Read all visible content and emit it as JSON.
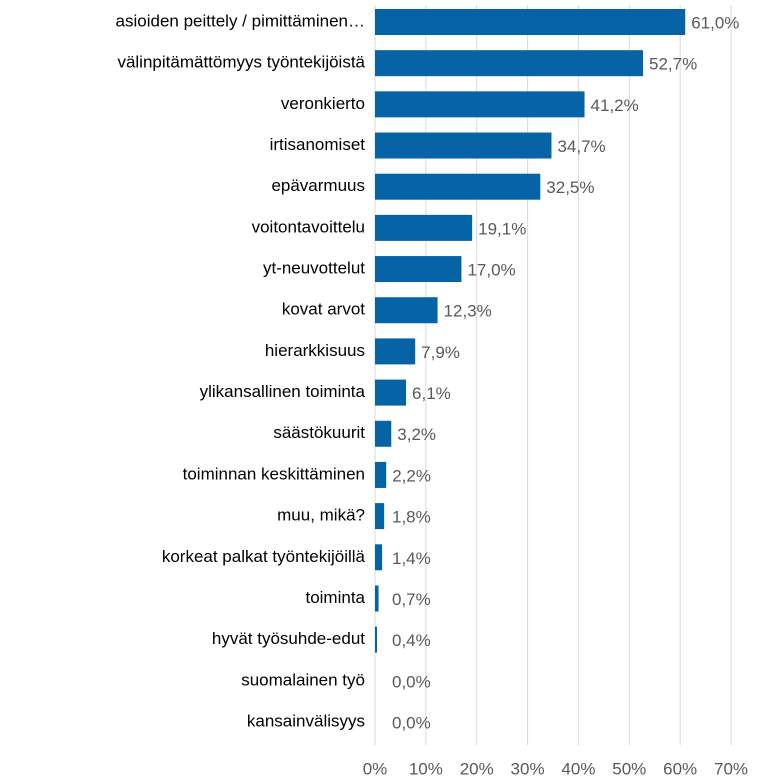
{
  "chart_data": {
    "type": "barh",
    "categories": [
      "asioiden peittely / pimittäminen…",
      "välinpitämättömyys työntekijöistä",
      "veronkierto",
      "irtisanomiset",
      "epävarmuus",
      "voitontavoittelu",
      "yt-neuvottelut",
      "kovat arvot",
      "hierarkkisuus",
      "ylikansallinen toiminta",
      "säästökuurit",
      "toiminnan keskittäminen",
      "muu, mikä?",
      "korkeat palkat työntekijöillä",
      "toiminta",
      "hyvät työsuhde-edut",
      "suomalainen työ",
      "kansainvälisyys"
    ],
    "values": [
      61.0,
      52.7,
      41.2,
      34.7,
      32.5,
      19.1,
      17.0,
      12.3,
      7.9,
      6.1,
      3.2,
      2.2,
      1.8,
      1.4,
      0.7,
      0.4,
      0.0,
      0.0
    ],
    "value_labels": [
      "61,0%",
      "52,7%",
      "41,2%",
      "34,7%",
      "32,5%",
      "19,1%",
      "17,0%",
      "12,3%",
      "7,9%",
      "6,1%",
      "3,2%",
      "2,2%",
      "1,8%",
      "1,4%",
      "0,7%",
      "0,4%",
      "0,0%",
      "0,0%"
    ],
    "color": "#0563a6",
    "xlim": [
      0,
      70
    ],
    "xticks": [
      {
        "value": 0,
        "label": "0%"
      },
      {
        "value": 10,
        "label": "10%"
      },
      {
        "value": 20,
        "label": "20%"
      },
      {
        "value": 30,
        "label": "30%"
      },
      {
        "value": 40,
        "label": "40%"
      },
      {
        "value": 50,
        "label": "50%"
      },
      {
        "value": 60,
        "label": "60%"
      },
      {
        "value": 70,
        "label": "70%"
      }
    ],
    "grid": true
  }
}
